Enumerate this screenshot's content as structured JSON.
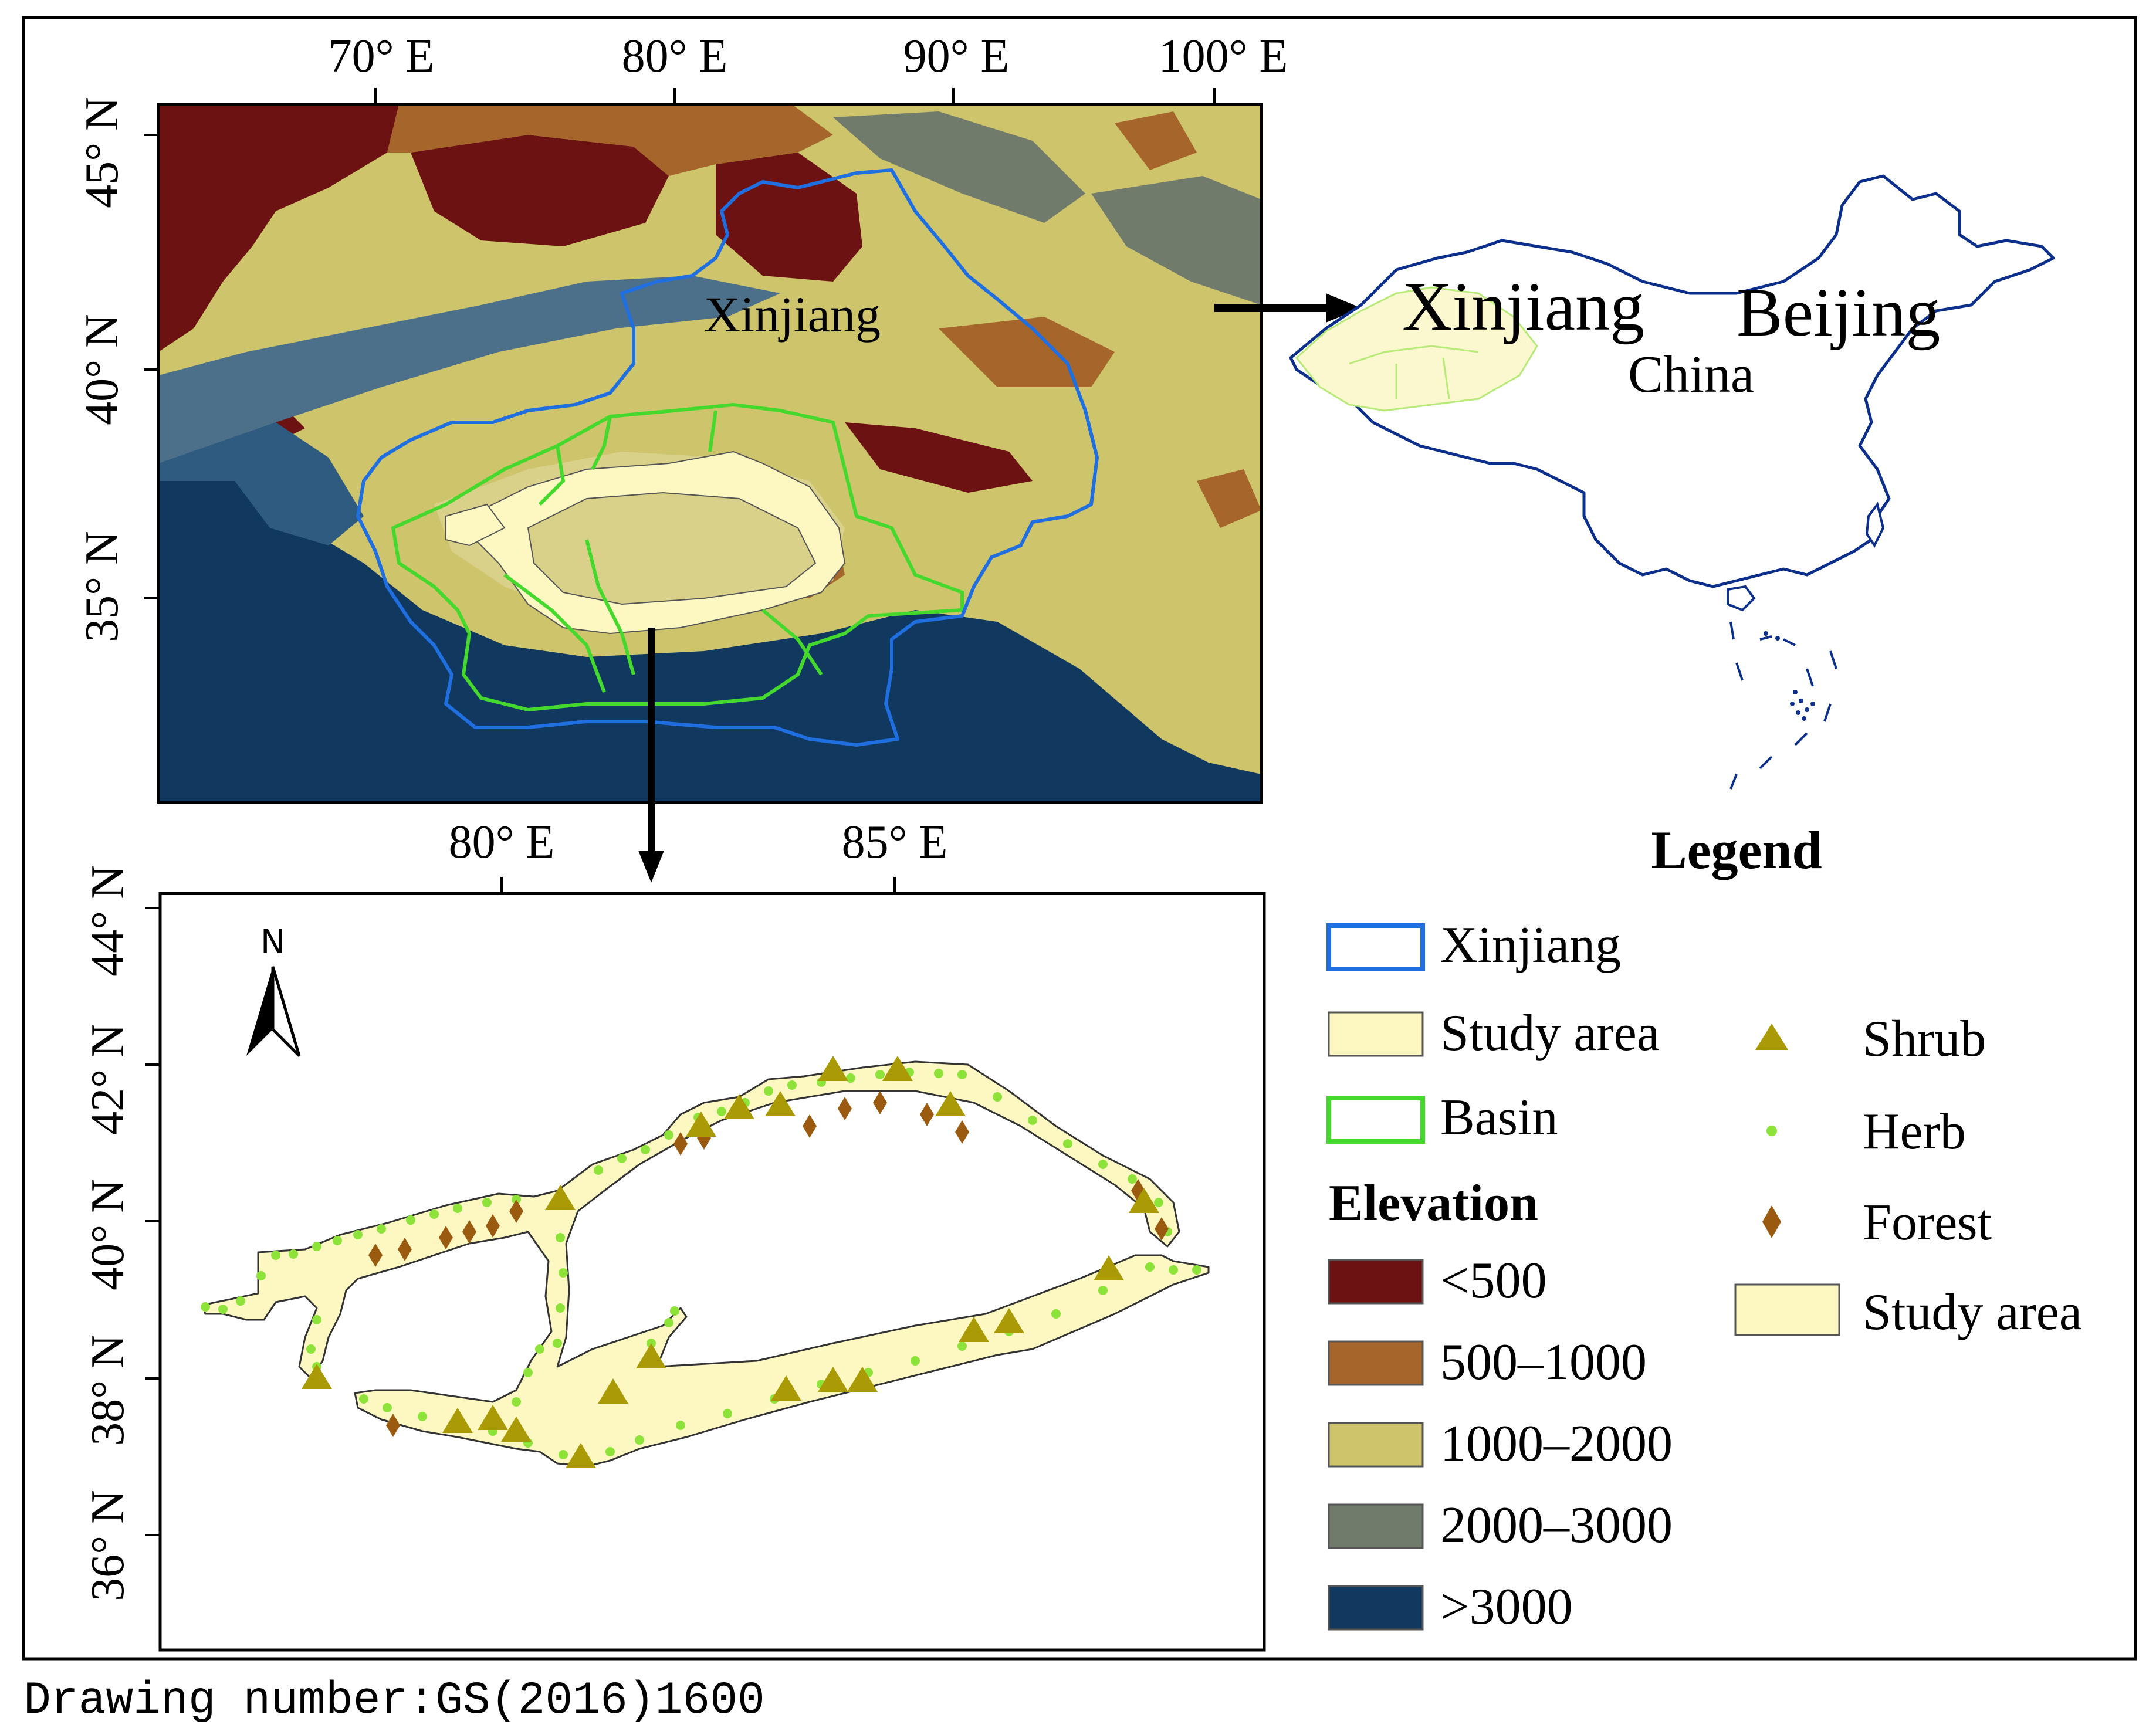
{
  "top_map": {
    "lon_labels": [
      "70° E",
      "80° E",
      "90° E",
      "100° E"
    ],
    "lat_labels": [
      "45° N",
      "40° N",
      "35° N"
    ],
    "region_label": "Xinjiang"
  },
  "inset_map": {
    "labels": [
      "Xinjiang",
      "Beijing",
      "China"
    ]
  },
  "bottom_map": {
    "lon_labels": [
      "80° E",
      "85° E"
    ],
    "lat_labels": [
      "44° N",
      "42° N",
      "40° N",
      "38° N",
      "36° N"
    ],
    "north_label": "N"
  },
  "legend": {
    "title": "Legend",
    "boundaries": [
      {
        "label": "Xinjiang",
        "stroke": "#1f6fe0",
        "fill": "#ffffff"
      },
      {
        "label": "Study area",
        "stroke": "#555555",
        "fill": "#fdf7c2"
      },
      {
        "label": "Basin",
        "stroke": "#45d92d",
        "fill": "#ffffff"
      }
    ],
    "elevation_title": "Elevation",
    "elevation_classes": [
      {
        "label": "<500",
        "color": "#6d1212"
      },
      {
        "label": "500–1000",
        "color": "#a5652b"
      },
      {
        "label": "1000–2000",
        "color": "#cdc46b"
      },
      {
        "label": "2000–3000",
        "color": "#717b6c"
      },
      {
        "label": ">3000",
        "color": "#113960"
      }
    ],
    "vegetation": [
      {
        "label": "Shrub",
        "symbol": "triangle",
        "color": "#a99a06"
      },
      {
        "label": "Herb",
        "symbol": "dot",
        "color": "#8ee33a"
      },
      {
        "label": "Forest",
        "symbol": "diamond",
        "color": "#9a5a10"
      }
    ],
    "study_area_label": "Study area",
    "study_area_fill": "#fdf7c2"
  },
  "footer": {
    "drawing_number": "Drawing number:GS(2016)1600"
  }
}
